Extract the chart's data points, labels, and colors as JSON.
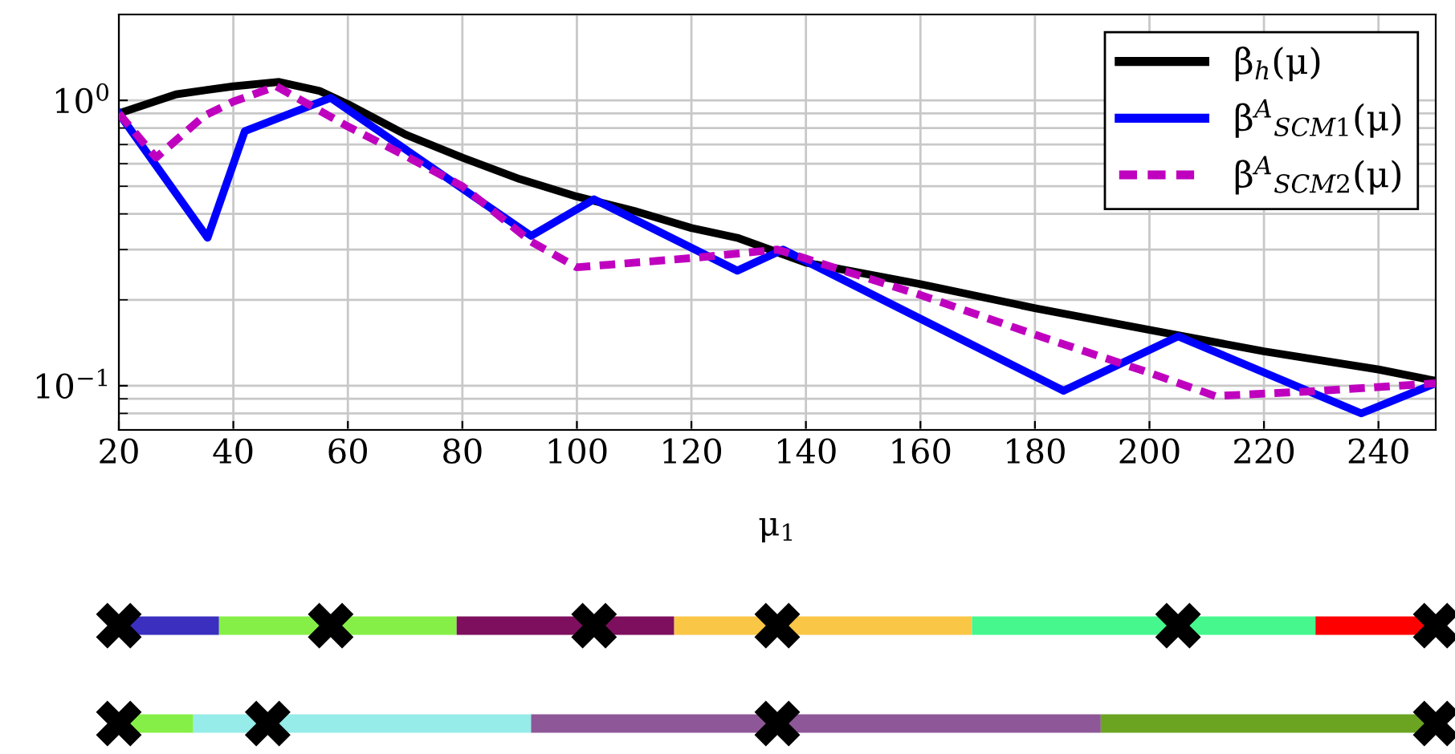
{
  "chart_data": {
    "type": "line",
    "xlabel": "μ$_{1}$",
    "log": "y",
    "grid": true,
    "legend": "top right",
    "line_style": "solid",
    "marker": "none",
    "xlim": [
      20,
      250
    ],
    "xticks": [
      20,
      40,
      60,
      80,
      100,
      120,
      140,
      160,
      180,
      200,
      220,
      240
    ],
    "ylim": [
      0.07,
      2
    ],
    "yticks": [
      {
        "value": 1,
        "label": "10$^{0}$"
      },
      {
        "value": 0.1,
        "label": "10$^{−1}$"
      }
    ],
    "series": [
      {
        "name": "β$_{h}$(μ)",
        "color": "#000000",
        "x": [
          20,
          30,
          40,
          48,
          55,
          60,
          70,
          80,
          90,
          100,
          110,
          120,
          128,
          140,
          160,
          180,
          200,
          220,
          240,
          250
        ],
        "values": [
          0.9,
          1.05,
          1.12,
          1.16,
          1.08,
          0.97,
          0.76,
          0.63,
          0.53,
          0.46,
          0.41,
          0.357,
          0.33,
          0.27,
          0.227,
          0.187,
          0.157,
          0.132,
          0.114,
          0.104
        ]
      },
      {
        "name": "β$^{A}$$_{SCM1}$(μ)",
        "color": "#0000ff",
        "x": [
          20,
          35.5,
          42,
          57,
          92,
          103,
          128,
          136,
          185,
          205,
          237,
          250
        ],
        "values": [
          0.9,
          0.33,
          0.78,
          1.02,
          0.335,
          0.45,
          0.253,
          0.3,
          0.096,
          0.149,
          0.08,
          0.102
        ]
      },
      {
        "name": "β$^{A}$$_{SCM2}$(μ)",
        "color": "#bf00bf",
        "line_style": "dashed",
        "x": [
          20,
          26.5,
          35,
          40,
          47.5,
          60,
          70,
          80,
          92,
          100,
          120,
          135,
          160,
          180,
          200,
          211.5,
          230,
          250
        ],
        "values": [
          0.9,
          0.63,
          0.885,
          0.99,
          1.12,
          0.81,
          0.64,
          0.5,
          0.32,
          0.26,
          0.28,
          0.3,
          0.208,
          0.151,
          0.111,
          0.092,
          0.096,
          0.102
        ]
      }
    ]
  }
}
